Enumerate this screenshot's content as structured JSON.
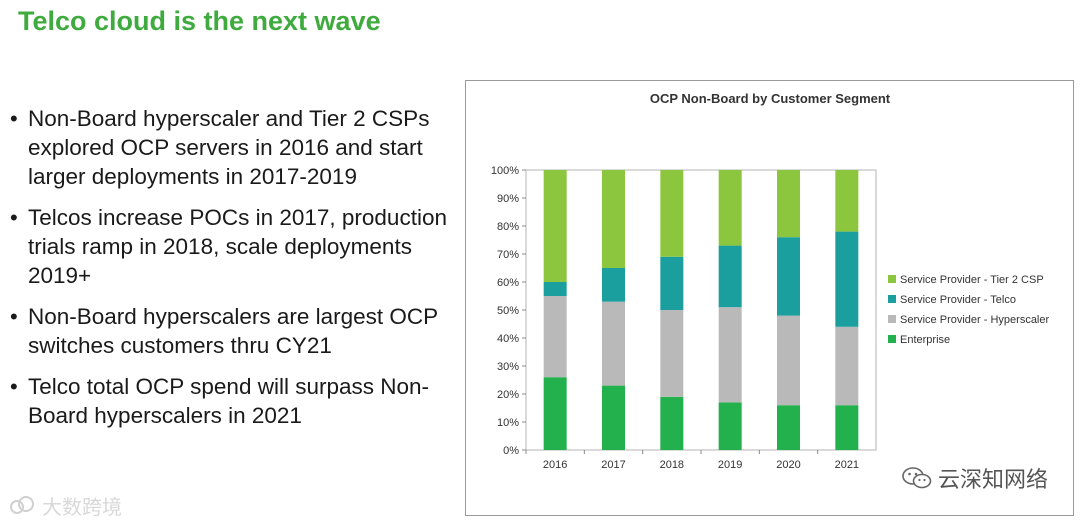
{
  "slide": {
    "title": "Telco cloud is the next wave",
    "bullets": [
      "Non-Board hyperscaler and Tier 2 CSPs explored OCP servers in 2016 and start larger deployments in 2017-2019",
      "Telcos increase POCs in 2017, production trials ramp in 2018, scale deployments 2019+",
      "Non-Board hyperscalers are largest OCP switches customers thru CY21",
      "Telco total OCP spend will surpass Non-Board hyperscalers  in 2021"
    ],
    "bullet_symbol": "•"
  },
  "watermarks": {
    "right_text": "云深知网络",
    "left_text": "大数跨境",
    "right_icon": "wechat-icon",
    "left_icon": "cloud-logo-icon"
  },
  "chart_data": {
    "type": "bar",
    "stacked": true,
    "title": "OCP Non-Board by Customer Segment",
    "categories": [
      "2016",
      "2017",
      "2018",
      "2019",
      "2020",
      "2021"
    ],
    "ylim": [
      0,
      100
    ],
    "yticks": [
      "0%",
      "10%",
      "20%",
      "30%",
      "40%",
      "50%",
      "60%",
      "70%",
      "80%",
      "90%",
      "100%"
    ],
    "grid": false,
    "legend_position": "right",
    "series": [
      {
        "name": "Enterprise",
        "color": "#22b14c",
        "values": [
          26,
          23,
          19,
          17,
          16,
          16
        ]
      },
      {
        "name": "Service Provider - Hyperscaler",
        "color": "#b9b9b9",
        "values": [
          29,
          30,
          31,
          34,
          32,
          28
        ]
      },
      {
        "name": "Service Provider - Telco",
        "color": "#1b9e9e",
        "values": [
          5,
          12,
          19,
          22,
          28,
          34
        ]
      },
      {
        "name": "Service Provider - Tier 2 CSP",
        "color": "#8cc63f",
        "values": [
          40,
          35,
          31,
          27,
          24,
          22
        ]
      }
    ]
  }
}
